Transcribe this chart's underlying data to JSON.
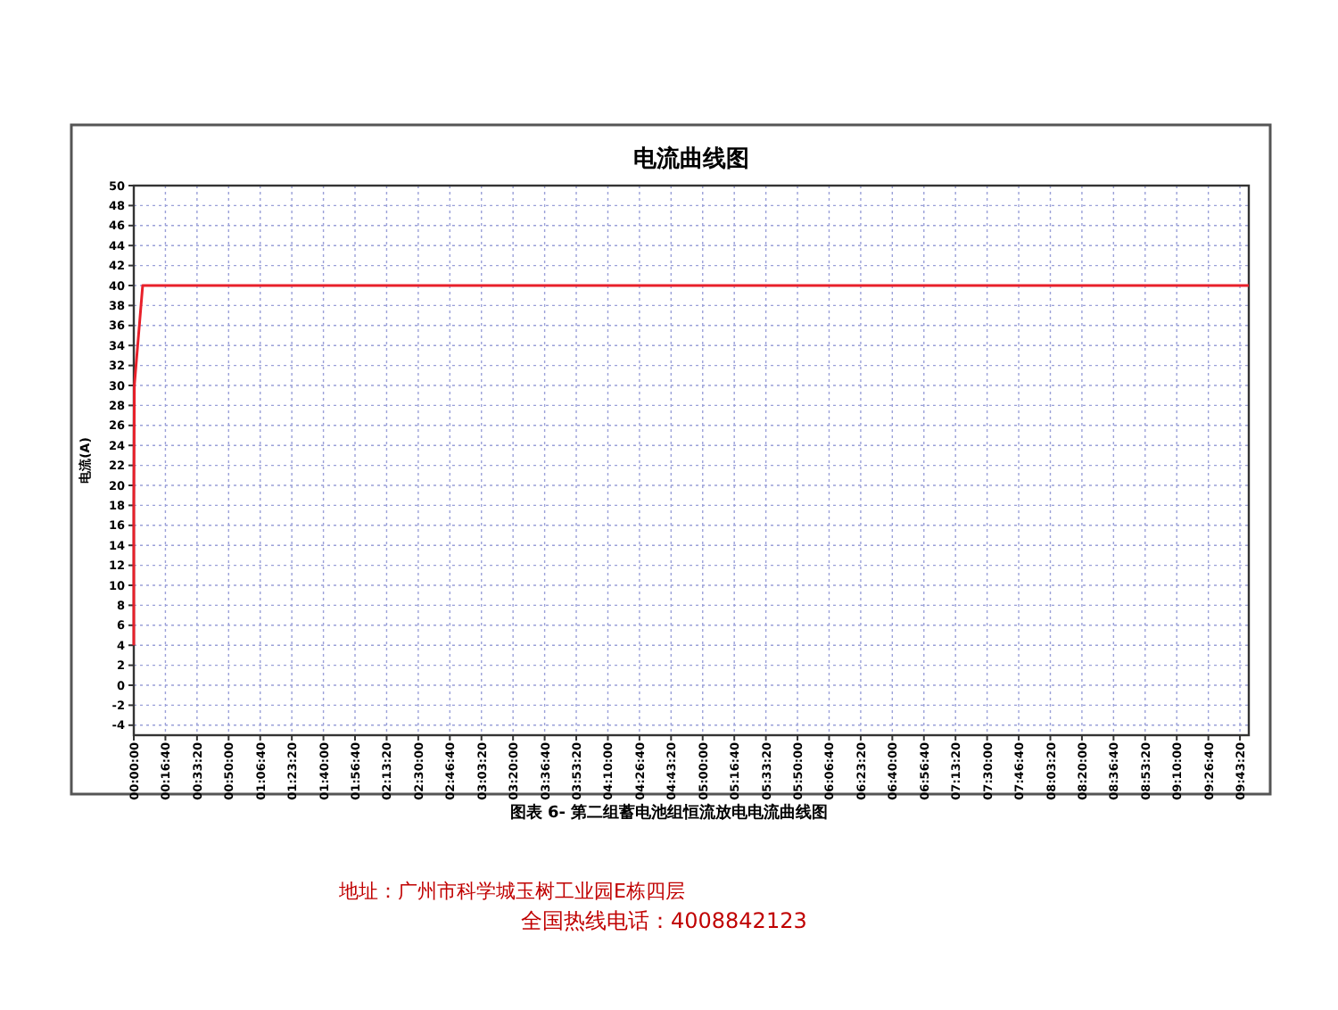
{
  "chart_data": {
    "type": "line",
    "title": "电流曲线图",
    "ylabel": "电流(A)",
    "annotations": [
      "图表 6- 第二组蓄电池组恒流放电电流曲线图",
      "地址：广州市科学城玉树工业园E栋四层",
      "全国热线电话：4008842123"
    ],
    "series": [
      {
        "color": "#e8202a",
        "x": [
          0,
          0,
          0.005,
          0.078,
          9.8
        ],
        "values": [
          4,
          18,
          30,
          40,
          40
        ]
      }
    ],
    "xlim": [
      0,
      9.8
    ],
    "ylim": [
      -5,
      50
    ],
    "xticks": [
      {
        "value": 0,
        "label": "00:00:00"
      },
      {
        "value": 0.2778,
        "label": "00:16:40"
      },
      {
        "value": 0.5556,
        "label": "00:33:20"
      },
      {
        "value": 0.8333,
        "label": "00:50:00"
      },
      {
        "value": 1.1111,
        "label": "01:06:40"
      },
      {
        "value": 1.3889,
        "label": "01:23:20"
      },
      {
        "value": 1.6667,
        "label": "01:40:00"
      },
      {
        "value": 1.9444,
        "label": "01:56:40"
      },
      {
        "value": 2.2222,
        "label": "02:13:20"
      },
      {
        "value": 2.5,
        "label": "02:30:00"
      },
      {
        "value": 2.7778,
        "label": "02:46:40"
      },
      {
        "value": 3.0556,
        "label": "03:03:20"
      },
      {
        "value": 3.3333,
        "label": "03:20:00"
      },
      {
        "value": 3.6111,
        "label": "03:36:40"
      },
      {
        "value": 3.8889,
        "label": "03:53:20"
      },
      {
        "value": 4.1667,
        "label": "04:10:00"
      },
      {
        "value": 4.4444,
        "label": "04:26:40"
      },
      {
        "value": 4.7222,
        "label": "04:43:20"
      },
      {
        "value": 5,
        "label": "05:00:00"
      },
      {
        "value": 5.2778,
        "label": "05:16:40"
      },
      {
        "value": 5.5556,
        "label": "05:33:20"
      },
      {
        "value": 5.8333,
        "label": "05:50:00"
      },
      {
        "value": 6.1111,
        "label": "06:06:40"
      },
      {
        "value": 6.3889,
        "label": "06:23:20"
      },
      {
        "value": 6.6667,
        "label": "06:40:00"
      },
      {
        "value": 6.9444,
        "label": "06:56:40"
      },
      {
        "value": 7.2222,
        "label": "07:13:20"
      },
      {
        "value": 7.5,
        "label": "07:30:00"
      },
      {
        "value": 7.7778,
        "label": "07:46:40"
      },
      {
        "value": 8.0556,
        "label": "08:03:20"
      },
      {
        "value": 8.3333,
        "label": "08:20:00"
      },
      {
        "value": 8.6111,
        "label": "08:36:40"
      },
      {
        "value": 8.8889,
        "label": "08:53:20"
      },
      {
        "value": 9.1667,
        "label": "09:10:00"
      },
      {
        "value": 9.4444,
        "label": "09:26:40"
      },
      {
        "value": 9.7222,
        "label": "09:43:20"
      }
    ],
    "yticks": [
      -4,
      -2,
      0,
      2,
      4,
      6,
      8,
      10,
      12,
      14,
      16,
      18,
      20,
      22,
      24,
      26,
      28,
      30,
      32,
      34,
      36,
      38,
      40,
      42,
      44,
      46,
      48,
      50
    ],
    "grid": true
  }
}
